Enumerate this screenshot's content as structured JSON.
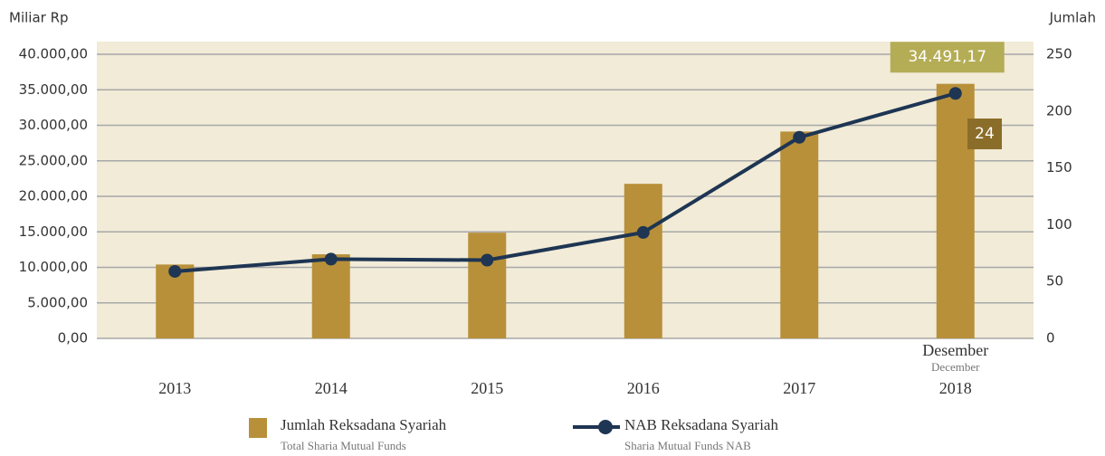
{
  "chart_data": {
    "type": "bar_line",
    "y_label": "Miliar Rp",
    "y2_label": "Jumlah",
    "categories": [
      "2013",
      "2014",
      "2015",
      "2016",
      "2017",
      "2018"
    ],
    "category_note": {
      "index": 5,
      "text": "Desember",
      "text_en": "December"
    },
    "ylim": [
      0,
      40000
    ],
    "yticks": [
      {
        "value": 0,
        "label": "0,00"
      },
      {
        "value": 5000,
        "label": "5.000,00"
      },
      {
        "value": 10000,
        "label": "10.000,00"
      },
      {
        "value": 15000,
        "label": "15.000,00"
      },
      {
        "value": 20000,
        "label": "20.000,00"
      },
      {
        "value": 25000,
        "label": "25.000,00"
      },
      {
        "value": 30000,
        "label": "30.000,00"
      },
      {
        "value": 35000,
        "label": "35.000,00"
      },
      {
        "value": 40000,
        "label": "40.000,00"
      }
    ],
    "y2lim": [
      0,
      250
    ],
    "y2ticks": [
      0,
      50,
      100,
      150,
      200,
      250
    ],
    "grid": true,
    "series": [
      {
        "name": "Jumlah Reksadana Syariah",
        "name_en": "Total Sharia Mutual Funds",
        "kind": "bar",
        "axis": "y2",
        "color": "#b8903a",
        "values": [
          65,
          74,
          93,
          136,
          182,
          224
        ]
      },
      {
        "name": "NAB Reksadana Syariah",
        "name_en": "Sharia Mutual Funds NAB",
        "kind": "line",
        "axis": "y",
        "color": "#1e3553",
        "values": [
          9430,
          11158,
          11019,
          14914,
          28311,
          34491.17
        ],
        "value_labels": [
          null,
          null,
          null,
          null,
          null,
          "34.491,17"
        ]
      }
    ],
    "annotations": [
      {
        "text": "24",
        "color": "#8a6d28"
      }
    ],
    "label_color": "#b5ad56"
  }
}
